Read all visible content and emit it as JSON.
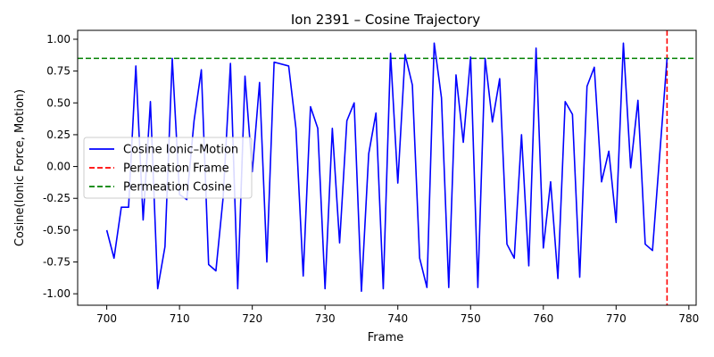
{
  "chart_data": {
    "type": "line",
    "title": "Ion 2391 – Cosine Trajectory",
    "xlabel": "Frame",
    "ylabel": "Cosine(Ionic Force, Motion)",
    "xlim": [
      696,
      781
    ],
    "ylim": [
      -1.09,
      1.07
    ],
    "xticks": [
      700,
      710,
      720,
      730,
      740,
      750,
      760,
      770,
      780
    ],
    "yticks": [
      -1.0,
      -0.75,
      -0.5,
      -0.25,
      0.0,
      0.25,
      0.5,
      0.75,
      1.0
    ],
    "grid": false,
    "legend_position": "center-left",
    "series": [
      {
        "name": "Cosine Ionic–Motion",
        "color": "#0000ff",
        "style": "solid",
        "x": [
          700,
          701,
          702,
          703,
          704,
          705,
          706,
          707,
          708,
          709,
          710,
          711,
          712,
          713,
          714,
          715,
          716,
          717,
          718,
          719,
          720,
          721,
          722,
          723,
          725,
          726,
          727,
          728,
          729,
          730,
          731,
          732,
          733,
          734,
          735,
          736,
          737,
          738,
          739,
          740,
          741,
          742,
          743,
          744,
          745,
          746,
          747,
          748,
          749,
          750,
          751,
          752,
          753,
          754,
          755,
          756,
          757,
          758,
          759,
          760,
          761,
          762,
          763,
          764,
          765,
          766,
          767,
          768,
          769,
          770,
          771,
          772,
          773,
          774,
          775,
          776,
          777
        ],
        "y": [
          -0.5,
          -0.72,
          -0.32,
          -0.32,
          0.79,
          -0.42,
          0.51,
          -0.96,
          -0.63,
          0.85,
          -0.22,
          -0.26,
          0.36,
          0.76,
          -0.77,
          -0.82,
          -0.24,
          0.81,
          -0.96,
          0.71,
          -0.04,
          0.66,
          -0.75,
          0.82,
          0.79,
          0.3,
          -0.86,
          0.47,
          0.3,
          -0.96,
          0.3,
          -0.6,
          0.36,
          0.5,
          -0.98,
          0.1,
          0.42,
          -0.96,
          0.89,
          -0.13,
          0.88,
          0.64,
          -0.72,
          -0.95,
          0.97,
          0.54,
          -0.95,
          0.72,
          0.19,
          0.86,
          -0.95,
          0.85,
          0.35,
          0.69,
          -0.61,
          -0.72,
          0.25,
          -0.78,
          0.93,
          -0.64,
          -0.12,
          -0.88,
          0.51,
          0.41,
          -0.87,
          0.63,
          0.78,
          -0.12,
          0.12,
          -0.44,
          0.97,
          -0.01,
          0.52,
          -0.61,
          -0.66,
          0.1,
          0.85
        ]
      },
      {
        "name": "Permeation Frame",
        "color": "#ff0000",
        "style": "dashed",
        "orientation": "vertical",
        "value": 777
      },
      {
        "name": "Permeation Cosine",
        "color": "#008000",
        "style": "dashed",
        "orientation": "horizontal",
        "value": 0.85
      }
    ]
  }
}
